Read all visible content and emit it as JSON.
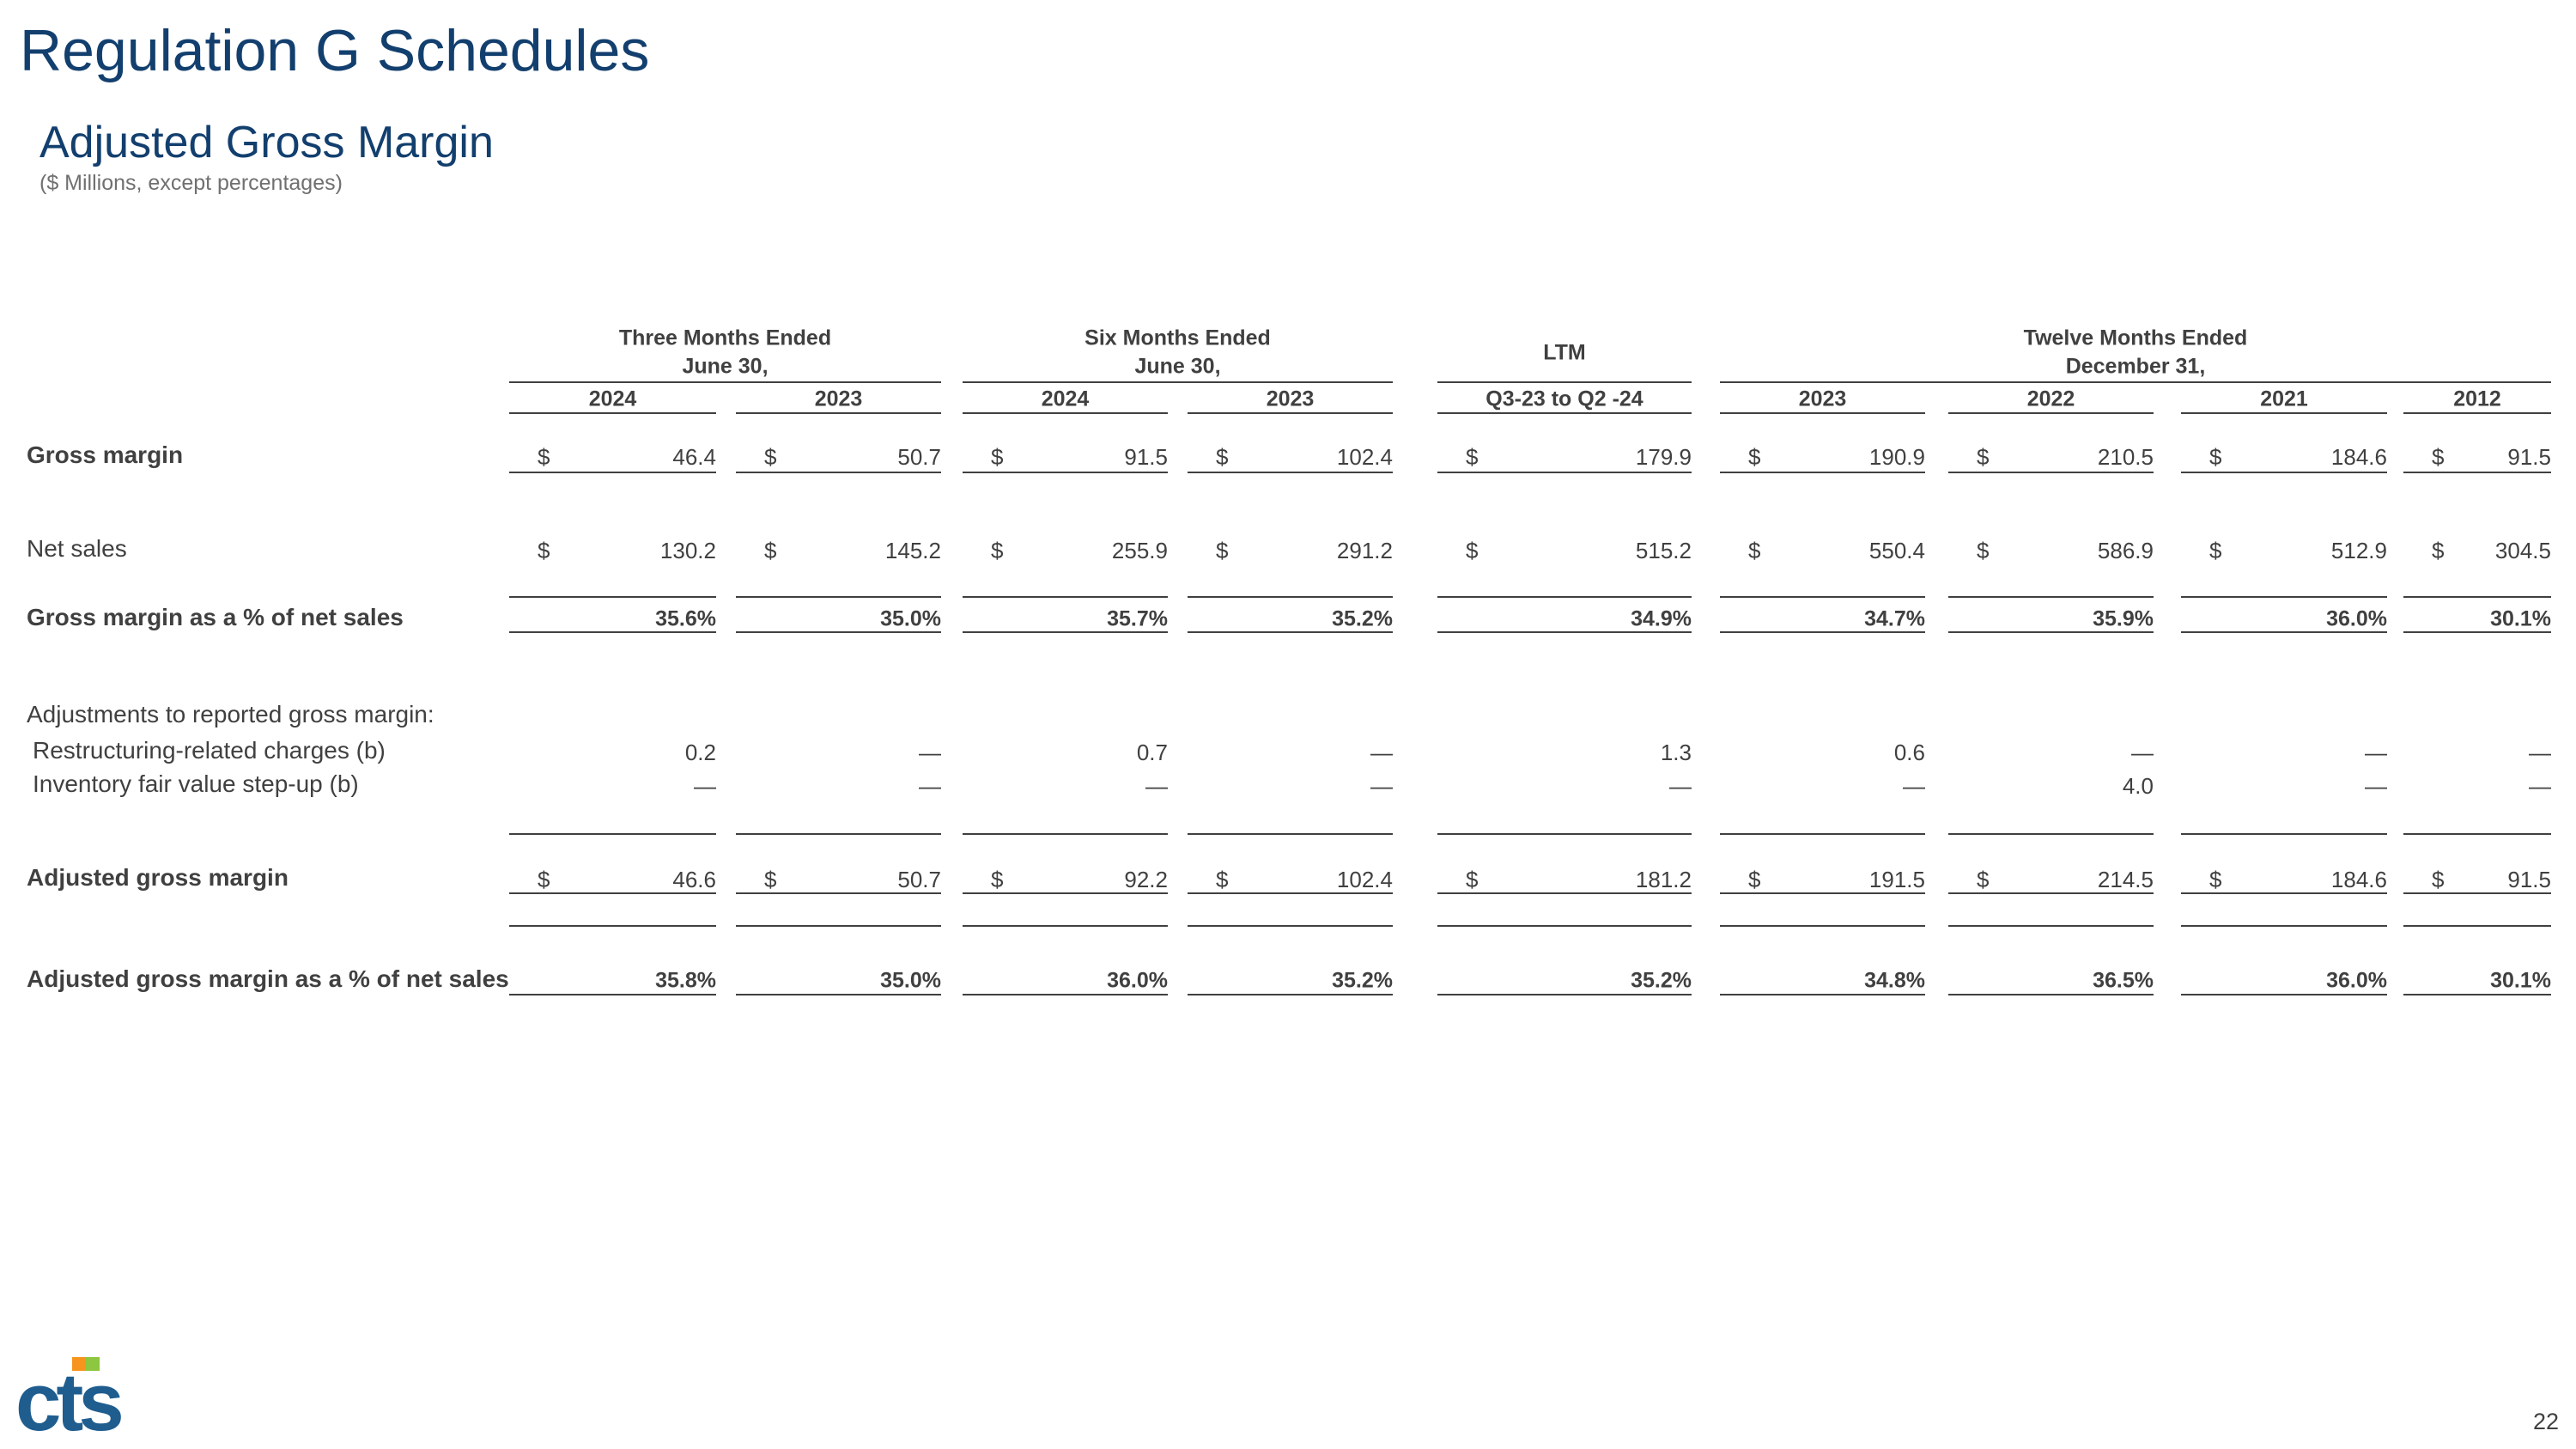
{
  "header": {
    "title": "Regulation G Schedules",
    "subtitle": "Adjusted Gross Margin",
    "note": "($ Millions, except percentages)"
  },
  "table": {
    "groups": [
      [
        "Three Months Ended",
        "June 30,"
      ],
      [
        "Six Months Ended",
        "June 30,"
      ],
      [
        "LTM"
      ],
      [
        "Twelve Months Ended",
        "December 31,"
      ]
    ],
    "columns": [
      "2024",
      "2023",
      "2024",
      "2023",
      "Q3-23 to Q2 -24",
      "2023",
      "2022",
      "2021",
      "2012"
    ],
    "rows": [
      {
        "label": "Gross margin",
        "currency": "$",
        "values": [
          "46.4",
          "50.7",
          "91.5",
          "102.4",
          "179.9",
          "190.9",
          "210.5",
          "184.6",
          "91.5"
        ]
      },
      {
        "label": "Net sales",
        "currency": "$",
        "values": [
          "130.2",
          "145.2",
          "255.9",
          "291.2",
          "515.2",
          "550.4",
          "586.9",
          "512.9",
          "304.5"
        ]
      },
      {
        "label": "Gross margin as a % of net sales",
        "values": [
          "35.6%",
          "35.0%",
          "35.7%",
          "35.2%",
          "34.9%",
          "34.7%",
          "35.9%",
          "36.0%",
          "30.1%"
        ]
      },
      {
        "label": "Adjustments to reported gross margin:"
      },
      {
        "label": "Restructuring-related charges (b)",
        "values": [
          "0.2",
          "—",
          "0.7",
          "—",
          "1.3",
          "0.6",
          "—",
          "—",
          "—"
        ]
      },
      {
        "label": "Inventory fair value step-up (b)",
        "values": [
          "—",
          "—",
          "—",
          "—",
          "—",
          "—",
          "4.0",
          "—",
          "—"
        ]
      },
      {
        "label": "Adjusted gross margin",
        "currency": "$",
        "values": [
          "46.6",
          "50.7",
          "92.2",
          "102.4",
          "181.2",
          "191.5",
          "214.5",
          "184.6",
          "91.5"
        ]
      },
      {
        "label": "Adjusted gross margin as a % of net sales",
        "values": [
          "35.8%",
          "35.0%",
          "36.0%",
          "35.2%",
          "35.2%",
          "34.8%",
          "36.5%",
          "36.0%",
          "30.1%"
        ]
      }
    ]
  },
  "logo": "cts",
  "page_number": "22"
}
